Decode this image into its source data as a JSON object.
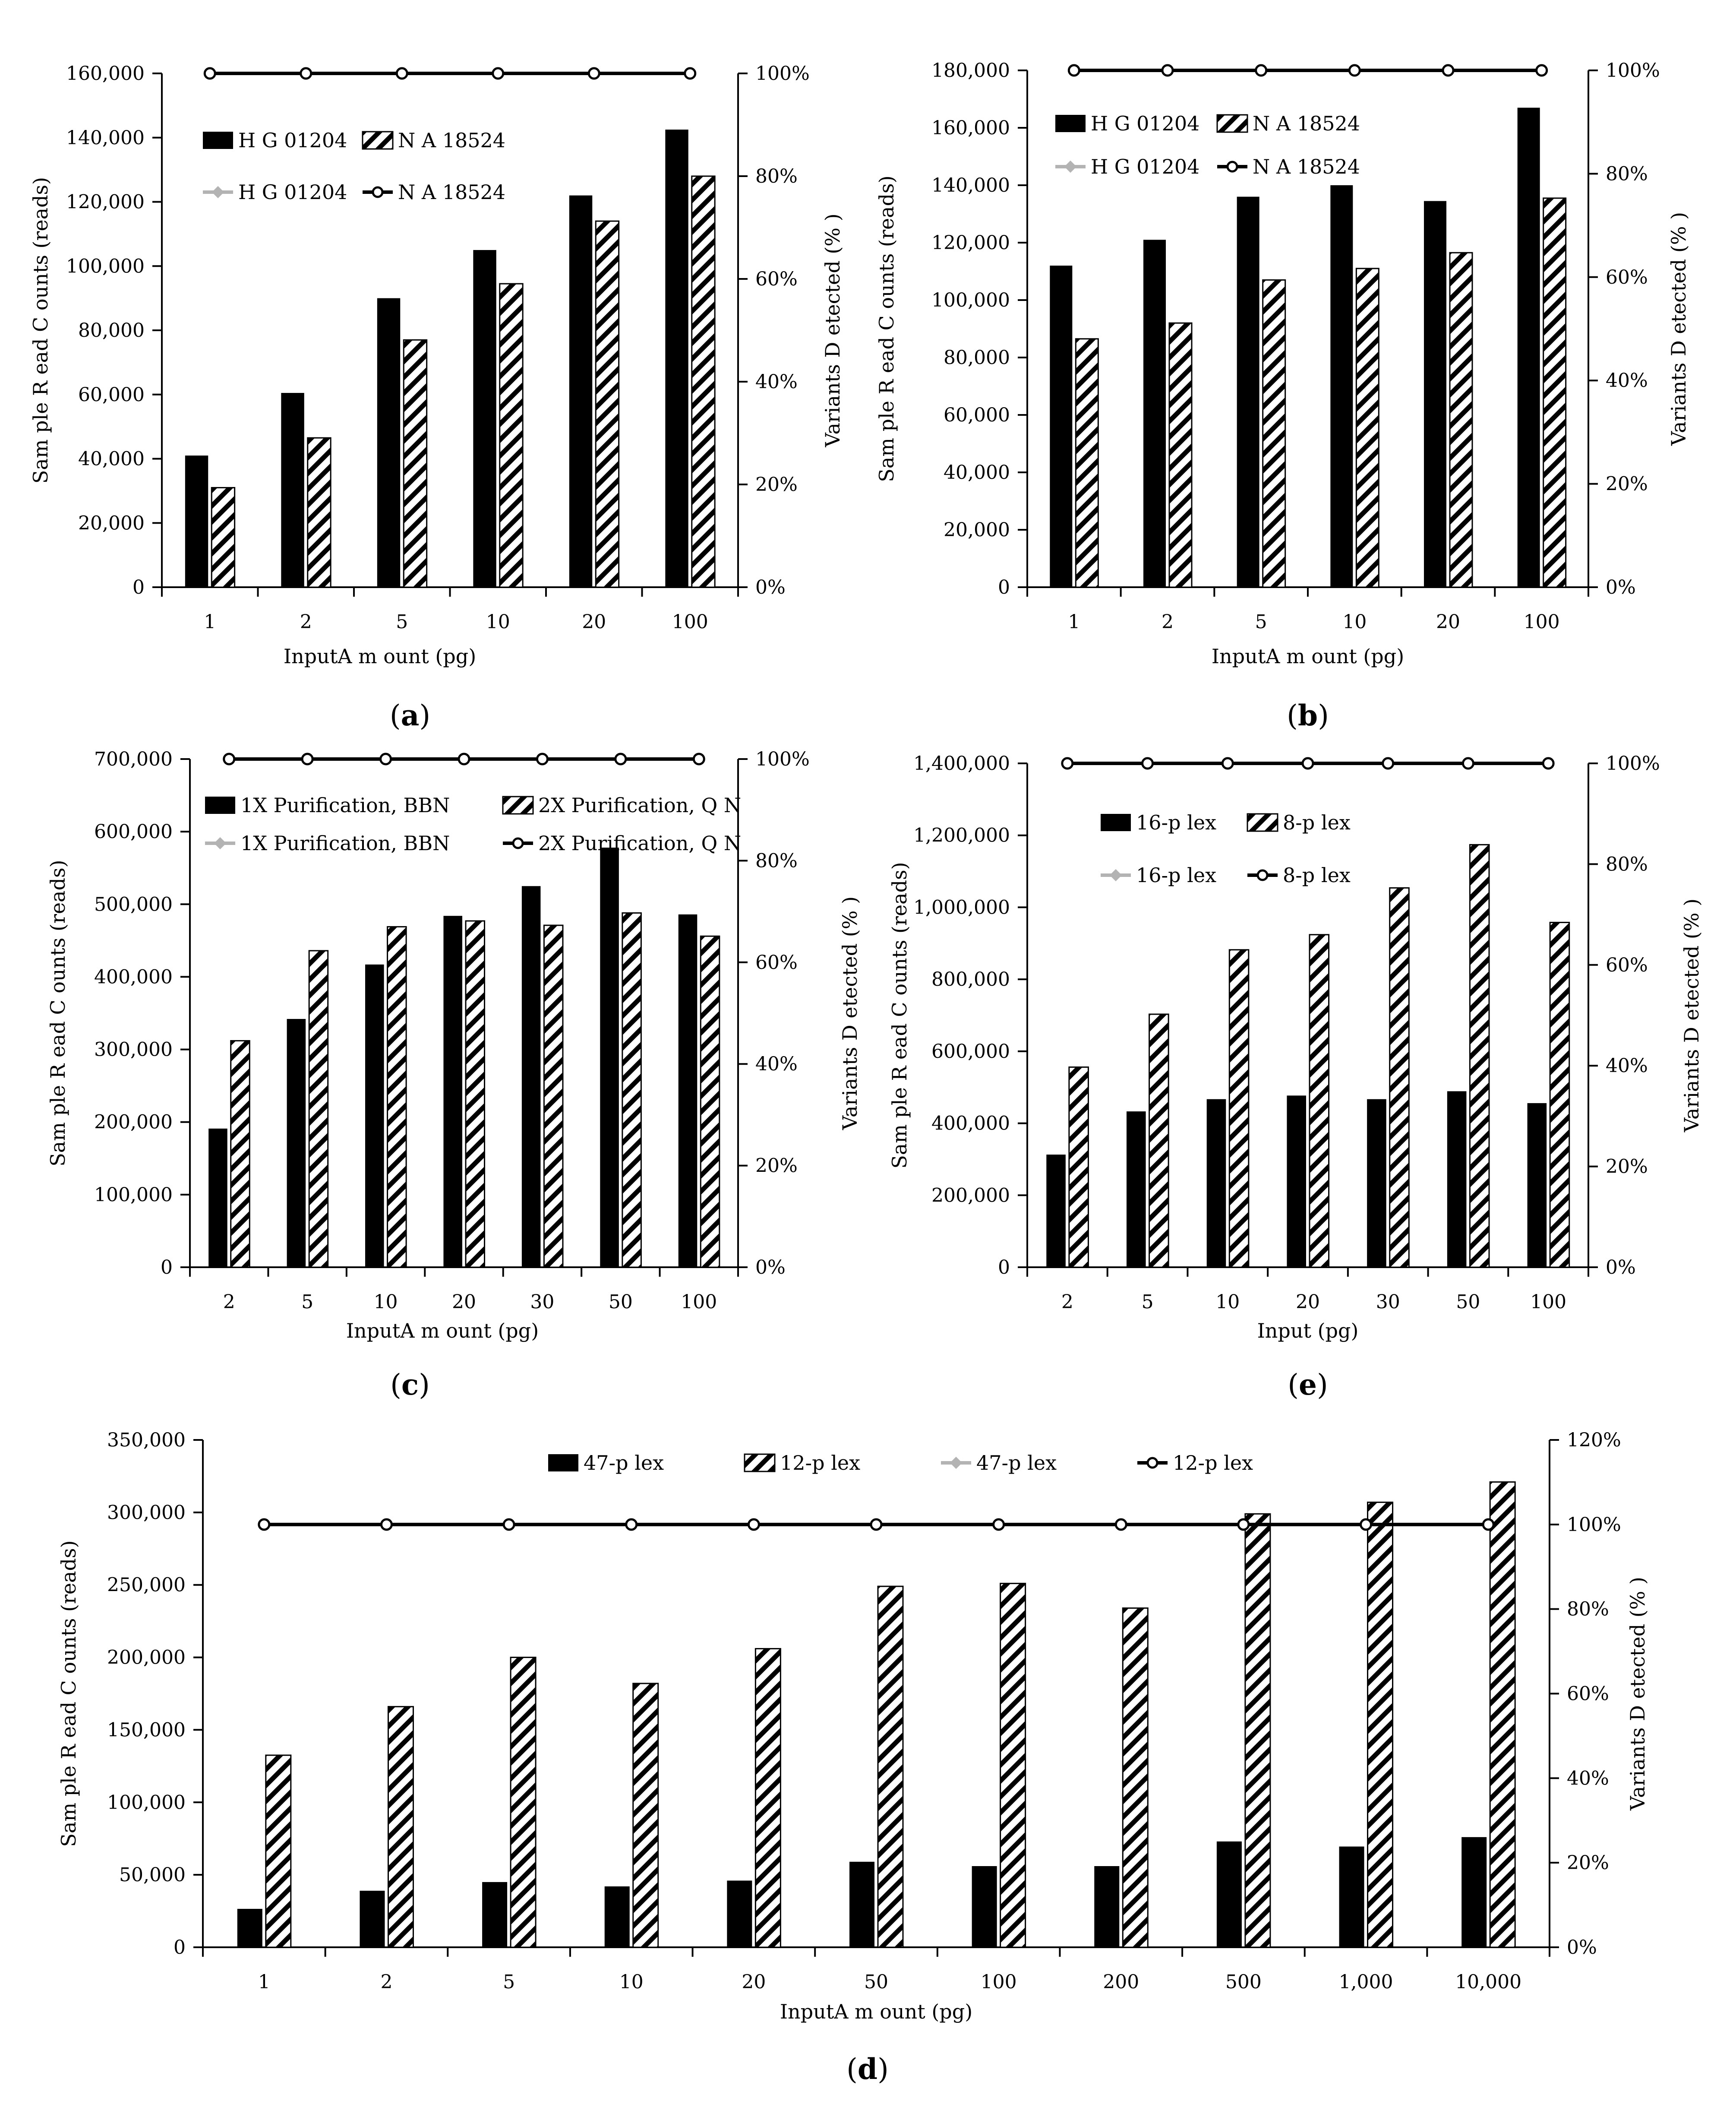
{
  "colors": {
    "primary_bar": "#000000",
    "secondary_bar_stripe": "#000000",
    "primary_line": "#b3b3b3",
    "secondary_line": "#000000",
    "marker_fill": "#ffffff",
    "axis": "#000000",
    "background": "#ffffff"
  },
  "chart_data": [
    {
      "panel": "a",
      "label_text": "a",
      "type": "bar",
      "categories": [
        "1",
        "2",
        "5",
        "10",
        "20",
        "100"
      ],
      "series": [
        {
          "name": "H G 01204",
          "style": "solid",
          "values": [
            41000,
            60500,
            90000,
            105000,
            122000,
            142500
          ]
        },
        {
          "name": "N A 18524",
          "style": "hatched",
          "values": [
            31000,
            46500,
            77000,
            94500,
            114000,
            128000
          ]
        }
      ],
      "line_series": [
        {
          "name": "H G 01204",
          "color": "gray",
          "values": [
            100,
            100,
            100,
            100,
            100,
            100
          ]
        },
        {
          "name": "N A 18524",
          "color": "black",
          "values": [
            100,
            100,
            100,
            100,
            100,
            100
          ]
        }
      ],
      "xlabel": "InputA m ount (pg)",
      "ylabel": "Sam ple R ead C ounts (reads)",
      "y2label": "Variants D etected (% )",
      "ylim": [
        0,
        160000
      ],
      "yticks": [
        0,
        20000,
        40000,
        60000,
        80000,
        100000,
        120000,
        140000,
        160000
      ],
      "ytick_labels": [
        "0",
        "20,000",
        "40,000",
        "60,000",
        "80,000",
        "100,000",
        "120,000",
        "140,000",
        "160,000"
      ],
      "y2lim": [
        0,
        100
      ],
      "y2ticks": [
        0,
        20,
        40,
        60,
        80,
        100
      ],
      "y2tick_labels": [
        "0%",
        "20%",
        "40%",
        "60%",
        "80%",
        "100%"
      ],
      "legend": {
        "position": "upper-left",
        "columns": 2,
        "entries": [
          "H G 01204",
          "N A 18524",
          "H G 01204",
          "N A 18524"
        ]
      }
    },
    {
      "panel": "b",
      "label_text": "b",
      "type": "bar",
      "categories": [
        "1",
        "2",
        "5",
        "10",
        "20",
        "100"
      ],
      "series": [
        {
          "name": "H G 01204",
          "style": "solid",
          "values": [
            112000,
            121000,
            136000,
            140000,
            134500,
            167000
          ]
        },
        {
          "name": "N A 18524",
          "style": "hatched",
          "values": [
            86500,
            92000,
            107000,
            111000,
            116500,
            135500
          ]
        }
      ],
      "line_series": [
        {
          "name": "H G 01204",
          "color": "gray",
          "values": [
            100,
            100,
            100,
            100,
            100,
            100
          ]
        },
        {
          "name": "N A 18524",
          "color": "black",
          "values": [
            100,
            100,
            100,
            100,
            100,
            100
          ]
        }
      ],
      "xlabel": "InputA m ount (pg)",
      "ylabel": "Sam ple R ead C ounts (reads)",
      "y2label": "Variants D etected (% )",
      "ylim": [
        0,
        180000
      ],
      "yticks": [
        0,
        20000,
        40000,
        60000,
        80000,
        100000,
        120000,
        140000,
        160000,
        180000
      ],
      "ytick_labels": [
        "0",
        "20,000",
        "40,000",
        "60,000",
        "80,000",
        "100,000",
        "120,000",
        "140,000",
        "160,000",
        "180,000"
      ],
      "y2lim": [
        0,
        100
      ],
      "y2ticks": [
        0,
        20,
        40,
        60,
        80,
        100
      ],
      "y2tick_labels": [
        "0%",
        "20%",
        "40%",
        "60%",
        "80%",
        "100%"
      ],
      "legend": {
        "position": "upper-left",
        "columns": 2,
        "entries": [
          "H G 01204",
          "N A 18524",
          "H G 01204",
          "N A 18524"
        ]
      }
    },
    {
      "panel": "c",
      "label_text": "c",
      "type": "bar",
      "categories": [
        "2",
        "5",
        "10",
        "20",
        "30",
        "50",
        "100"
      ],
      "series": [
        {
          "name": "1X Purification, BBN",
          "style": "solid",
          "values": [
            191000,
            342000,
            417000,
            484000,
            525000,
            578000,
            486000
          ]
        },
        {
          "name": "2X Purification, Q N",
          "style": "hatched",
          "values": [
            312000,
            436000,
            469000,
            477000,
            471000,
            488000,
            456000
          ]
        }
      ],
      "line_series": [
        {
          "name": "1X Purification, BBN",
          "color": "gray",
          "values": [
            100,
            100,
            100,
            100,
            100,
            100,
            100
          ]
        },
        {
          "name": "2X Purification, Q N",
          "color": "black",
          "values": [
            100,
            100,
            100,
            100,
            100,
            100,
            100
          ]
        }
      ],
      "xlabel": "InputA m ount (pg)",
      "ylabel": "Sam ple R ead C ounts (reads)",
      "y2label": "Variants D etected (% )",
      "ylim": [
        0,
        700000
      ],
      "yticks": [
        0,
        100000,
        200000,
        300000,
        400000,
        500000,
        600000,
        700000
      ],
      "ytick_labels": [
        "0",
        "100,000",
        "200,000",
        "300,000",
        "400,000",
        "500,000",
        "600,000",
        "700,000"
      ],
      "y2lim": [
        0,
        100
      ],
      "y2ticks": [
        0,
        20,
        40,
        60,
        80,
        100
      ],
      "y2tick_labels": [
        "0%",
        "20%",
        "40%",
        "60%",
        "80%",
        "100%"
      ],
      "legend": {
        "position": "upper-left",
        "columns": 2,
        "entries": [
          "1X Purification, BBN",
          "2X Purification, Q N",
          "1X Purification, BBN",
          "2X Purification, Q N"
        ]
      }
    },
    {
      "panel": "e",
      "label_text": "e",
      "type": "bar",
      "categories": [
        "2",
        "5",
        "10",
        "20",
        "30",
        "50",
        "100"
      ],
      "series": [
        {
          "name": "16-p lex",
          "style": "solid",
          "values": [
            313000,
            433000,
            467000,
            477000,
            467000,
            489000,
            456000
          ]
        },
        {
          "name": "8-p lex",
          "style": "hatched",
          "values": [
            556000,
            703000,
            882000,
            924000,
            1054000,
            1174000,
            958000
          ]
        }
      ],
      "line_series": [
        {
          "name": "16-p lex",
          "color": "gray",
          "values": [
            100,
            100,
            100,
            100,
            100,
            100,
            100
          ]
        },
        {
          "name": "8-p lex",
          "color": "black",
          "values": [
            100,
            100,
            100,
            100,
            100,
            100,
            100
          ]
        }
      ],
      "xlabel": "Input (pg)",
      "ylabel": "Sam ple R ead C ounts (reads)",
      "y2label": "Variants D etected (% )",
      "ylim": [
        0,
        1400000
      ],
      "yticks": [
        0,
        200000,
        400000,
        600000,
        800000,
        1000000,
        1200000,
        1400000
      ],
      "ytick_labels": [
        "0",
        "200,000",
        "400,000",
        "600,000",
        "800,000",
        "1,000,000",
        "1,200,000",
        "1,400,000"
      ],
      "y2lim": [
        0,
        100
      ],
      "y2ticks": [
        0,
        20,
        40,
        60,
        80,
        100
      ],
      "y2tick_labels": [
        "0%",
        "20%",
        "40%",
        "60%",
        "80%",
        "100%"
      ],
      "legend": {
        "position": "upper-left",
        "columns": 2,
        "entries": [
          "16-p lex",
          "8-p lex",
          "16-p lex",
          "8-p lex"
        ]
      }
    },
    {
      "panel": "d",
      "label_text": "d",
      "type": "bar",
      "categories": [
        "1",
        "2",
        "5",
        "10",
        "20",
        "50",
        "100",
        "200",
        "500",
        "1,000",
        "10,000"
      ],
      "series": [
        {
          "name": "47-p lex",
          "style": "solid",
          "values": [
            26500,
            39000,
            45000,
            42000,
            46000,
            59000,
            56000,
            56000,
            73000,
            69500,
            76000
          ]
        },
        {
          "name": "12-p lex",
          "style": "hatched",
          "values": [
            132500,
            166000,
            200000,
            182000,
            206000,
            249000,
            251000,
            234000,
            299000,
            307000,
            321000
          ]
        }
      ],
      "line_series": [
        {
          "name": "47-p lex",
          "color": "gray",
          "values": [
            100,
            100,
            100,
            100,
            100,
            100,
            100,
            100,
            100,
            100,
            100
          ]
        },
        {
          "name": "12-p lex",
          "color": "black",
          "values": [
            100,
            100,
            100,
            100,
            100,
            100,
            100,
            100,
            100,
            100,
            100
          ]
        }
      ],
      "xlabel": "InputA m ount (pg)",
      "ylabel": "Sam ple R ead C ounts (reads)",
      "y2label": "Variants D etected (% )",
      "ylim": [
        0,
        350000
      ],
      "yticks": [
        0,
        50000,
        100000,
        150000,
        200000,
        250000,
        300000,
        350000
      ],
      "ytick_labels": [
        "0",
        "50,000",
        "100,000",
        "150,000",
        "200,000",
        "250,000",
        "300,000",
        "350,000"
      ],
      "y2lim": [
        0,
        120
      ],
      "y2ticks": [
        0,
        20,
        40,
        60,
        80,
        100,
        120
      ],
      "y2tick_labels": [
        "0%",
        "20%",
        "40%",
        "60%",
        "80%",
        "100%",
        "120%"
      ],
      "legend": {
        "position": "top-center",
        "columns": 4,
        "entries": [
          "47-p lex",
          "12-p lex",
          "47-p lex",
          "12-p lex"
        ]
      }
    }
  ]
}
